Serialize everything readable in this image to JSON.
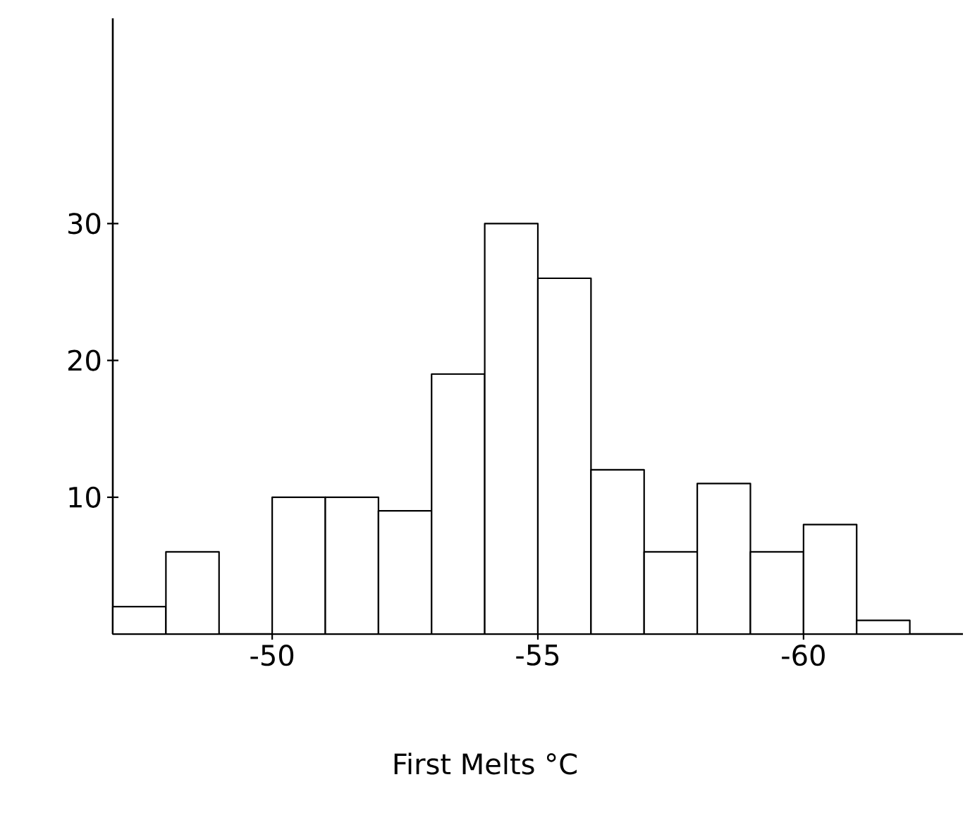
{
  "chart_data": {
    "type": "histogram",
    "xlabel": "First Melts °C",
    "bins": [
      -47,
      -48,
      -49,
      -50,
      -51,
      -52,
      -53,
      -54,
      -55,
      -56,
      -57,
      -58,
      -59,
      -60,
      -61,
      -62
    ],
    "values": [
      2,
      6,
      0,
      10,
      10,
      9,
      19,
      30,
      26,
      12,
      6,
      11,
      6,
      8,
      1
    ],
    "color": "#000000",
    "xlim": [
      -47,
      -63
    ],
    "xticks": [
      -50,
      -55,
      -60
    ],
    "ylim": [
      0,
      45
    ],
    "yticks": [
      10,
      20,
      30
    ]
  }
}
